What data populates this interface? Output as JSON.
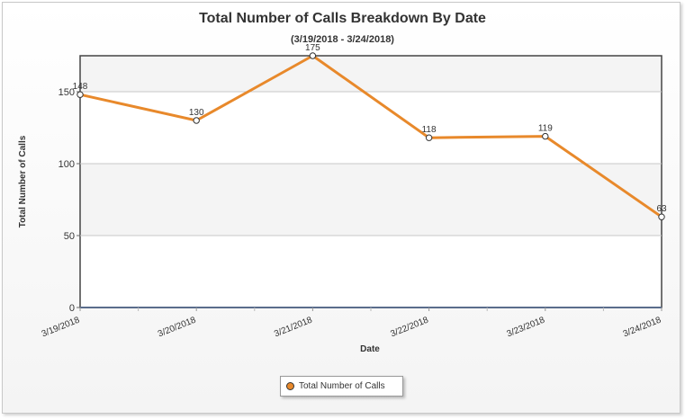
{
  "chart_data": {
    "type": "line",
    "title": "Total Number of Calls Breakdown By Date",
    "subtitle": "(3/19/2018 - 3/24/2018)",
    "xlabel": "Date",
    "ylabel": "Total Number of Calls",
    "categories": [
      "3/19/2018",
      "3/20/2018",
      "3/21/2018",
      "3/22/2018",
      "3/23/2018",
      "3/24/2018"
    ],
    "series": [
      {
        "name": "Total Number of Calls",
        "values": [
          148,
          130,
          175,
          118,
          119,
          63
        ]
      }
    ],
    "data_labels": [
      "148",
      "130",
      "175",
      "118",
      "119",
      "63"
    ],
    "yticks": [
      0,
      50,
      100,
      150
    ],
    "ylim": [
      0,
      175
    ],
    "grid": true,
    "legend_position": "bottom",
    "colors": {
      "line": "#e8892b",
      "marker_fill": "#ffffff",
      "marker_stroke": "#333333"
    }
  }
}
